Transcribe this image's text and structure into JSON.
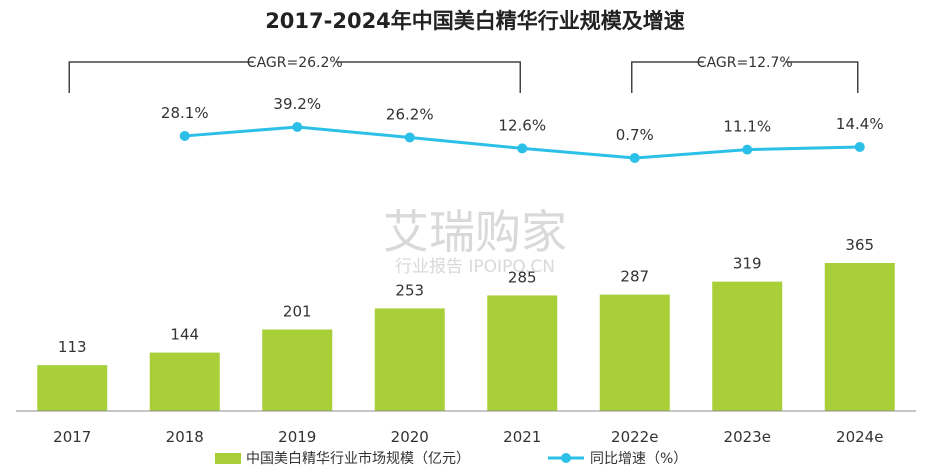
{
  "colors": {
    "bar": "#a8cf38",
    "line": "#2cc0e8",
    "bracket": "#444444",
    "axis": "#8c8c8c",
    "watermark": "#d9d9d9"
  },
  "watermark": {
    "main": "艾瑞购家",
    "sub": "行业报告 IPOIPO.CN"
  },
  "chart_data": {
    "type": "bar",
    "title": "2017-2024年中国美白精华行业规模及增速",
    "categories": [
      "2017",
      "2018",
      "2019",
      "2020",
      "2021",
      "2022e",
      "2023e",
      "2024e"
    ],
    "series": [
      {
        "name": "中国美白精华行业市场规模（亿元）",
        "type": "bar",
        "values": [
          113,
          144,
          201,
          253,
          285,
          287,
          319,
          365
        ],
        "labels": [
          "113",
          "144",
          "201",
          "253",
          "285",
          "287",
          "319",
          "365"
        ]
      },
      {
        "name": "同比增速（%）",
        "type": "line",
        "values": [
          null,
          28.1,
          39.2,
          26.2,
          12.6,
          0.7,
          11.1,
          14.4
        ],
        "labels": [
          "",
          "28.1%",
          "39.2%",
          "26.2%",
          "12.6%",
          "0.7%",
          "11.1%",
          "14.4%"
        ]
      }
    ],
    "annotations": [
      {
        "text": "CAGR=26.2%",
        "from": "2017",
        "to": "2021"
      },
      {
        "text": "CAGR=12.7%",
        "from": "2022e",
        "to": "2024e"
      }
    ],
    "grid": false,
    "legend": "bottom"
  }
}
